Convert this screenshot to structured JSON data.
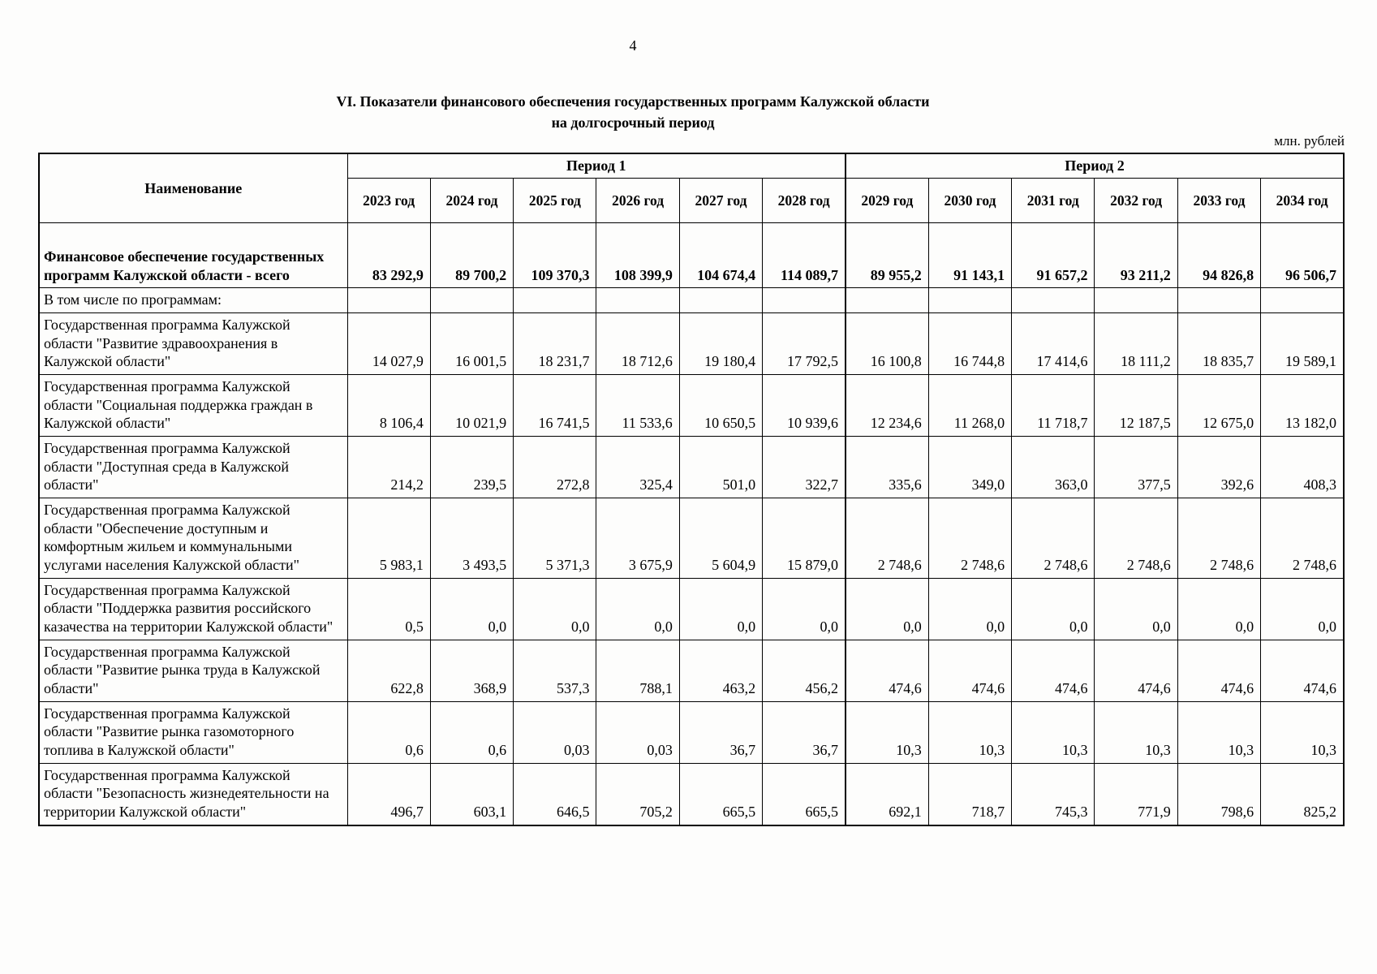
{
  "page": {
    "number": "4",
    "title_line1": "VI. Показатели финансового обеспечения государственных программ Калужской области",
    "title_line2": "на долгосрочный период",
    "unit_note": "млн. рублей"
  },
  "table": {
    "name_header": "Наименование",
    "period1_header": "Период 1",
    "period2_header": "Период 2",
    "years": [
      "2023 год",
      "2024 год",
      "2025 год",
      "2026 год",
      "2027 год",
      "2028 год",
      "2029 год",
      "2030 год",
      "2031 год",
      "2032 год",
      "2033 год",
      "2034 год"
    ],
    "rows": [
      {
        "name": "Финансовое обеспечение государственных программ Калужской области - всего",
        "bold": true,
        "first": true,
        "values": [
          "83 292,9",
          "89 700,2",
          "109 370,3",
          "108 399,9",
          "104 674,4",
          "114 089,7",
          "89 955,2",
          "91 143,1",
          "91 657,2",
          "93 211,2",
          "94 826,8",
          "96 506,7"
        ]
      },
      {
        "name": "В том числе по программам:",
        "bold": false,
        "values": [
          "",
          "",
          "",
          "",
          "",
          "",
          "",
          "",
          "",
          "",
          "",
          ""
        ]
      },
      {
        "name": "Государственная программа Калужской области \"Развитие здравоохранения в Калужской области\"",
        "bold": false,
        "values": [
          "14 027,9",
          "16 001,5",
          "18 231,7",
          "18 712,6",
          "19 180,4",
          "17 792,5",
          "16 100,8",
          "16 744,8",
          "17 414,6",
          "18 111,2",
          "18 835,7",
          "19 589,1"
        ]
      },
      {
        "name": "Государственная программа Калужской области \"Социальная поддержка граждан в Калужской области\"",
        "bold": false,
        "values": [
          "8 106,4",
          "10 021,9",
          "16 741,5",
          "11 533,6",
          "10 650,5",
          "10 939,6",
          "12 234,6",
          "11 268,0",
          "11 718,7",
          "12 187,5",
          "12 675,0",
          "13 182,0"
        ]
      },
      {
        "name": "Государственная программа Калужской области \"Доступная среда в Калужской области\"",
        "bold": false,
        "values": [
          "214,2",
          "239,5",
          "272,8",
          "325,4",
          "501,0",
          "322,7",
          "335,6",
          "349,0",
          "363,0",
          "377,5",
          "392,6",
          "408,3"
        ]
      },
      {
        "name": "Государственная программа Калужской области \"Обеспечение доступным и комфортным жильем и коммунальными услугами населения Калужской области\"",
        "bold": false,
        "values": [
          "5 983,1",
          "3 493,5",
          "5 371,3",
          "3 675,9",
          "5 604,9",
          "15 879,0",
          "2 748,6",
          "2 748,6",
          "2 748,6",
          "2 748,6",
          "2 748,6",
          "2 748,6"
        ]
      },
      {
        "name": "Государственная программа Калужской области \"Поддержка развития российского казачества на территории Калужской области\"",
        "bold": false,
        "values": [
          "0,5",
          "0,0",
          "0,0",
          "0,0",
          "0,0",
          "0,0",
          "0,0",
          "0,0",
          "0,0",
          "0,0",
          "0,0",
          "0,0"
        ]
      },
      {
        "name": "Государственная программа Калужской области \"Развитие рынка труда в Калужской области\"",
        "bold": false,
        "values": [
          "622,8",
          "368,9",
          "537,3",
          "788,1",
          "463,2",
          "456,2",
          "474,6",
          "474,6",
          "474,6",
          "474,6",
          "474,6",
          "474,6"
        ]
      },
      {
        "name": "Государственная программа Калужской области \"Развитие рынка газомоторного топлива в Калужской области\"",
        "bold": false,
        "values": [
          "0,6",
          "0,6",
          "0,03",
          "0,03",
          "36,7",
          "36,7",
          "10,3",
          "10,3",
          "10,3",
          "10,3",
          "10,3",
          "10,3"
        ]
      },
      {
        "name": "Государственная программа Калужской области \"Безопасность жизнедеятельности на территории Калужской области\"",
        "bold": false,
        "values": [
          "496,7",
          "603,1",
          "646,5",
          "705,2",
          "665,5",
          "665,5",
          "692,1",
          "718,7",
          "745,3",
          "771,9",
          "798,6",
          "825,2"
        ]
      }
    ]
  }
}
